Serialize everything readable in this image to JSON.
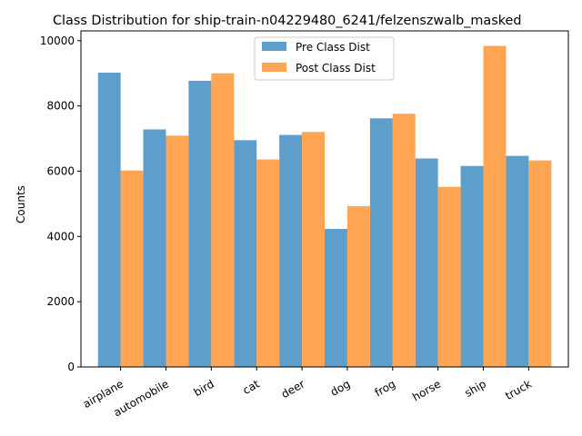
{
  "chart_data": {
    "type": "bar",
    "title": "Class Distribution for ship-train-n04229480_6241/felzenszwalb_masked",
    "xlabel": "",
    "ylabel": "Counts",
    "categories": [
      "airplane",
      "automobile",
      "bird",
      "cat",
      "deer",
      "dog",
      "frog",
      "horse",
      "ship",
      "truck"
    ],
    "series": [
      {
        "name": "Pre Class Dist",
        "color": "#5599c7",
        "values": [
          9020,
          7280,
          8770,
          6950,
          7110,
          4230,
          7620,
          6390,
          6160,
          6470
        ]
      },
      {
        "name": "Post Class Dist",
        "color": "#ffa04a",
        "values": [
          6020,
          7090,
          9000,
          6360,
          7200,
          4930,
          7760,
          5520,
          9840,
          6330
        ]
      }
    ],
    "yticks": [
      "0",
      "2000",
      "4000",
      "6000",
      "8000",
      "10000"
    ],
    "ylim": [
      0,
      10300
    ],
    "legend": "top-center",
    "grid": false
  }
}
